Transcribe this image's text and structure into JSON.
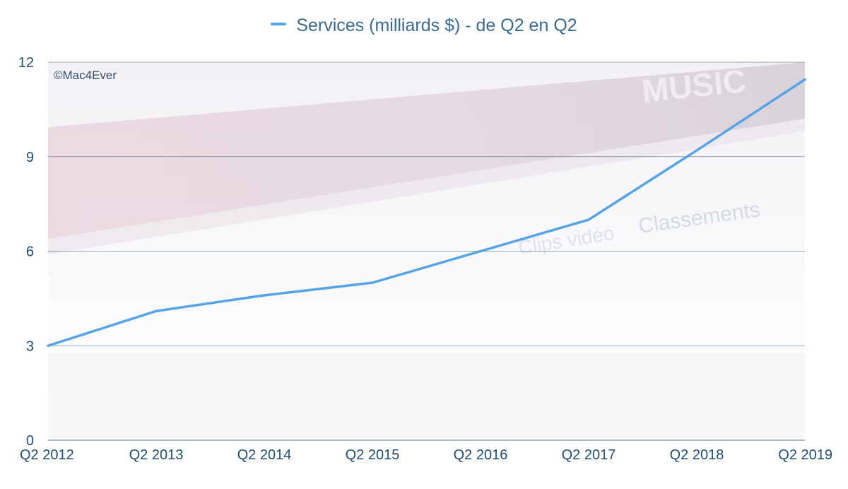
{
  "legend": {
    "label": "Services (milliards $) - de Q2 en Q2",
    "color": "#56a3e6"
  },
  "watermark": "©Mac4Ever",
  "background_art": {
    "text_music": "MUSIC",
    "text_classements": "Classements",
    "text_clips": "Clips vidéo"
  },
  "colors": {
    "axis_text": "#1f4e73",
    "grid": "#4a6a86",
    "line": "#56a3e6",
    "band": "#d7c4cf",
    "background_fade": "#eceef2"
  },
  "chart_data": {
    "type": "line",
    "categories": [
      "Q2 2012",
      "Q2 2013",
      "Q2 2014",
      "Q2 2015",
      "Q2 2016",
      "Q2 2017",
      "Q2 2018",
      "Q2 2019"
    ],
    "series": [
      {
        "name": "Services (milliards $) - de Q2 en Q2",
        "values": [
          3.0,
          4.1,
          4.6,
          5.0,
          6.0,
          7.0,
          9.2,
          11.45
        ]
      }
    ],
    "ylim": [
      0,
      12
    ],
    "yticks": [
      0,
      3,
      6,
      9,
      12
    ],
    "grid": true,
    "legend_position": "top-center"
  }
}
